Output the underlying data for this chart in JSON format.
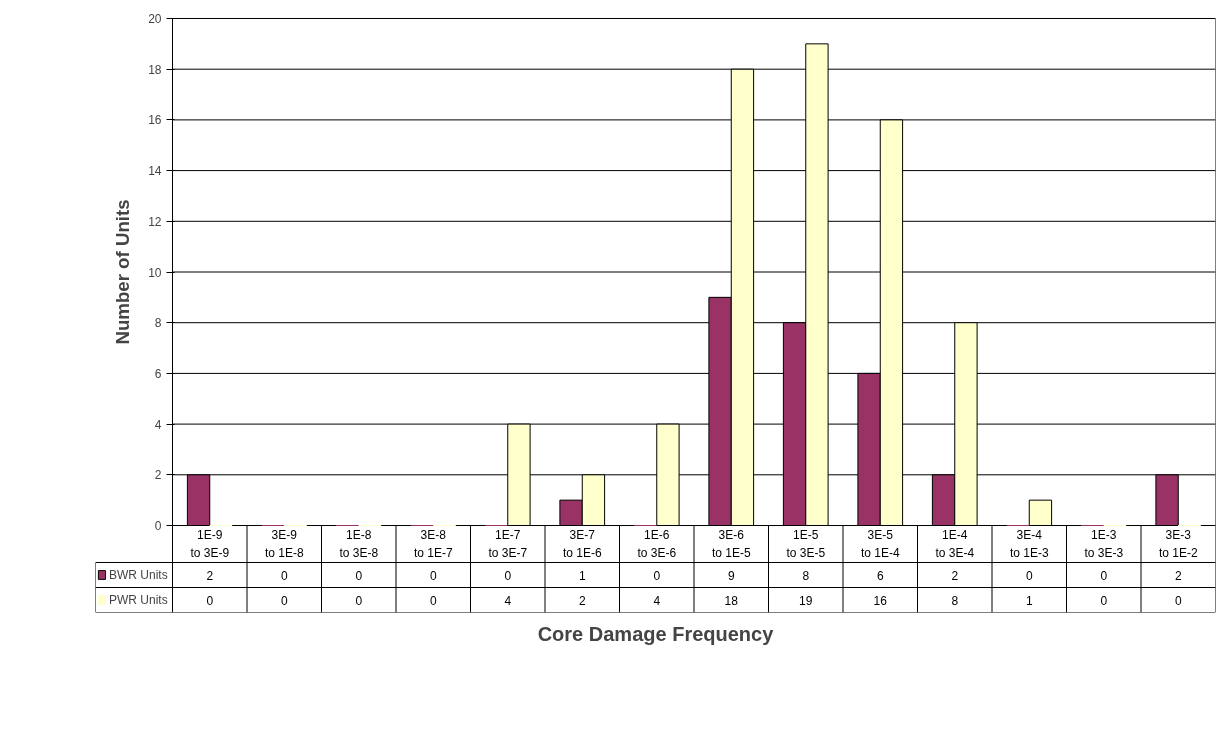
{
  "chart_data": {
    "type": "bar",
    "xlabel": "Core Damage Frequency",
    "ylabel": "Number of Units",
    "categories": [
      "1E-9\nto 3E-9",
      "3E-9\nto 1E-8",
      "1E-8\nto 3E-8",
      "3E-8\nto 1E-7",
      "1E-7\nto 3E-7",
      "3E-7\nto 1E-6",
      "1E-6\nto 3E-6",
      "3E-6\nto 1E-5",
      "1E-5\nto 3E-5",
      "3E-5\nto 1E-4",
      "1E-4\nto 3E-4",
      "3E-4\nto 1E-3",
      "1E-3\nto 3E-3",
      "3E-3\nto 1E-2"
    ],
    "series": [
      {
        "name": "BWR Units",
        "color": "#993366",
        "values": [
          2,
          0,
          0,
          0,
          0,
          1,
          0,
          9,
          8,
          6,
          2,
          0,
          0,
          2
        ]
      },
      {
        "name": "PWR Units",
        "color": "#ffffcc",
        "values": [
          0,
          0,
          0,
          0,
          4,
          2,
          4,
          18,
          19,
          16,
          8,
          1,
          0,
          0
        ]
      }
    ],
    "ylim": [
      0,
      20
    ],
    "yticks": [
      0,
      2,
      4,
      6,
      8,
      10,
      12,
      14,
      16,
      18,
      20
    ],
    "grid": "y",
    "legend": "bottom left",
    "data_labels": true
  }
}
